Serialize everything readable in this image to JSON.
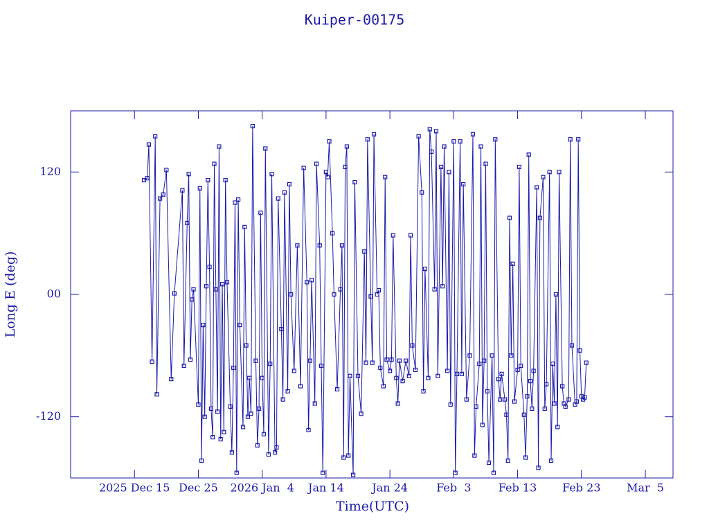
{
  "chart_data": {
    "type": "line",
    "title": "Kuiper-00175",
    "xlabel": "Time(UTC)",
    "ylabel": "Long E (deg)",
    "color": "#1a1aaa",
    "markers": true,
    "xlim": [
      "2025-12-05 00:00",
      "2026-03-09 08:00"
    ],
    "xticks": [
      {
        "value": "2025-12-15 00:00",
        "label": "2025 Dec 15"
      },
      {
        "value": "2025-12-25 00:00",
        "label": "Dec 25"
      },
      {
        "value": "2026-01-04 00:00",
        "label": "2026 Jan  4"
      },
      {
        "value": "2026-01-14 00:00",
        "label": "Jan 14"
      },
      {
        "value": "2026-01-24 00:00",
        "label": "Jan 24"
      },
      {
        "value": "2026-02-03 00:00",
        "label": "Feb  3"
      },
      {
        "value": "2026-02-13 00:00",
        "label": "Feb 13"
      },
      {
        "value": "2026-02-23 00:00",
        "label": "Feb 23"
      },
      {
        "value": "2026-03-05 00:00",
        "label": "Mar  5"
      }
    ],
    "ylim": [
      -180,
      180
    ],
    "yticks": [
      -120,
      {
        "value": 0,
        "label": "00"
      },
      120
    ],
    "x": [
      "2025-12-16 12:00",
      "2025-12-17 00:00",
      "2025-12-17 06:00",
      "2025-12-17 18:00",
      "2025-12-18 06:00",
      "2025-12-18 12:00",
      "2025-12-19 00:00",
      "2025-12-19 12:00",
      "2025-12-20 00:00",
      "2025-12-20 18:00",
      "2025-12-21 06:00",
      "2025-12-22 12:00",
      "2025-12-22 18:00",
      "2025-12-23 06:00",
      "2025-12-23 12:00",
      "2025-12-23 18:00",
      "2025-12-24 00:00",
      "2025-12-24 06:00",
      "2025-12-25 00:00",
      "2025-12-25 06:00",
      "2025-12-25 12:00",
      "2025-12-25 18:00",
      "2025-12-26 00:00",
      "2025-12-26 06:00",
      "2025-12-26 12:00",
      "2025-12-26 18:00",
      "2025-12-27 00:00",
      "2025-12-27 06:00",
      "2025-12-27 12:00",
      "2025-12-27 18:00",
      "2025-12-28 00:00",
      "2025-12-28 06:00",
      "2025-12-28 12:00",
      "2025-12-28 18:00",
      "2025-12-29 00:00",
      "2025-12-29 06:00",
      "2025-12-29 12:00",
      "2025-12-30 00:00",
      "2025-12-30 06:00",
      "2025-12-30 12:00",
      "2025-12-30 18:00",
      "2025-12-31 00:00",
      "2025-12-31 06:00",
      "2025-12-31 12:00",
      "2026-01-01 00:00",
      "2026-01-01 06:00",
      "2026-01-01 12:00",
      "2026-01-01 18:00",
      "2026-01-02 00:00",
      "2026-01-02 06:00",
      "2026-01-02 12:00",
      "2026-01-03 00:00",
      "2026-01-03 06:00",
      "2026-01-03 12:00",
      "2026-01-03 18:00",
      "2026-01-04 00:00",
      "2026-01-04 06:00",
      "2026-01-04 12:00",
      "2026-01-05 00:00",
      "2026-01-05 06:00",
      "2026-01-05 12:00",
      "2026-01-06 00:00",
      "2026-01-06 06:00",
      "2026-01-06 12:00",
      "2026-01-07 00:00",
      "2026-01-07 06:00",
      "2026-01-07 12:00",
      "2026-01-08 00:00",
      "2026-01-08 06:00",
      "2026-01-08 12:00",
      "2026-01-09 00:00",
      "2026-01-09 12:00",
      "2026-01-10 00:00",
      "2026-01-10 12:00",
      "2026-01-11 00:00",
      "2026-01-11 06:00",
      "2026-01-11 12:00",
      "2026-01-11 18:00",
      "2026-01-12 06:00",
      "2026-01-12 12:00",
      "2026-01-13 00:00",
      "2026-01-13 06:00",
      "2026-01-13 12:00",
      "2026-01-14 00:00",
      "2026-01-14 06:00",
      "2026-01-14 12:00",
      "2026-01-15 00:00",
      "2026-01-15 06:00",
      "2026-01-15 18:00",
      "2026-01-16 06:00",
      "2026-01-16 12:00",
      "2026-01-16 18:00",
      "2026-01-17 00:00",
      "2026-01-17 06:00",
      "2026-01-17 12:00",
      "2026-01-17 18:00",
      "2026-01-18 06:00",
      "2026-01-18 12:00",
      "2026-01-19 00:00",
      "2026-01-19 12:00",
      "2026-01-20 00:00",
      "2026-01-20 06:00",
      "2026-01-20 12:00",
      "2026-01-21 00:00",
      "2026-01-21 06:00",
      "2026-01-21 12:00",
      "2026-01-22 00:00",
      "2026-01-22 06:00",
      "2026-01-22 12:00",
      "2026-01-23 00:00",
      "2026-01-23 06:00",
      "2026-01-23 12:00",
      "2026-01-24 00:00",
      "2026-01-24 06:00",
      "2026-01-24 12:00",
      "2026-01-25 00:00",
      "2026-01-25 06:00",
      "2026-01-25 12:00",
      "2026-01-26 00:00",
      "2026-01-26 12:00",
      "2026-01-27 00:00",
      "2026-01-27 06:00",
      "2026-01-27 12:00",
      "2026-01-28 00:00",
      "2026-01-28 12:00",
      "2026-01-29 00:00",
      "2026-01-29 06:00",
      "2026-01-29 12:00",
      "2026-01-30 00:00",
      "2026-01-30 06:00",
      "2026-01-30 12:00",
      "2026-01-31 00:00",
      "2026-01-31 06:00",
      "2026-01-31 12:00",
      "2026-02-01 00:00",
      "2026-02-01 06:00",
      "2026-02-01 12:00",
      "2026-02-02 00:00",
      "2026-02-02 06:00",
      "2026-02-02 12:00",
      "2026-02-03 00:00",
      "2026-02-03 06:00",
      "2026-02-03 12:00",
      "2026-02-04 00:00",
      "2026-02-04 06:00",
      "2026-02-04 12:00",
      "2026-02-05 00:00",
      "2026-02-05 12:00",
      "2026-02-06 00:00",
      "2026-02-06 06:00",
      "2026-02-06 12:00",
      "2026-02-07 00:00",
      "2026-02-07 06:00",
      "2026-02-07 12:00",
      "2026-02-07 18:00",
      "2026-02-08 00:00",
      "2026-02-08 06:00",
      "2026-02-08 12:00",
      "2026-02-09 00:00",
      "2026-02-09 06:00",
      "2026-02-09 12:00",
      "2026-02-10 00:00",
      "2026-02-10 06:00",
      "2026-02-10 12:00",
      "2026-02-11 00:00",
      "2026-02-11 06:00",
      "2026-02-11 12:00",
      "2026-02-11 18:00",
      "2026-02-12 00:00",
      "2026-02-12 06:00",
      "2026-02-12 12:00",
      "2026-02-13 00:00",
      "2026-02-13 06:00",
      "2026-02-13 12:00",
      "2026-02-14 00:00",
      "2026-02-14 06:00",
      "2026-02-14 12:00",
      "2026-02-14 18:00",
      "2026-02-15 00:00",
      "2026-02-15 06:00",
      "2026-02-15 12:00",
      "2026-02-16 00:00",
      "2026-02-16 06:00",
      "2026-02-16 12:00",
      "2026-02-17 00:00",
      "2026-02-17 06:00",
      "2026-02-17 12:00",
      "2026-02-18 00:00",
      "2026-02-18 06:00",
      "2026-02-18 12:00",
      "2026-02-18 18:00",
      "2026-02-19 00:00",
      "2026-02-19 06:00",
      "2026-02-19 12:00",
      "2026-02-20 00:00",
      "2026-02-20 06:00",
      "2026-02-20 12:00",
      "2026-02-21 00:00",
      "2026-02-21 06:00",
      "2026-02-21 12:00",
      "2026-02-22 00:00",
      "2026-02-22 06:00",
      "2026-02-22 12:00",
      "2026-02-22 18:00",
      "2026-02-23 00:00",
      "2026-02-23 06:00",
      "2026-02-23 12:00",
      "2026-02-23 18:00"
    ],
    "values": [
      112,
      114,
      147,
      -66,
      155,
      -98,
      94,
      98,
      122,
      -83,
      1,
      102,
      -70,
      70,
      118,
      -64,
      -5,
      5,
      -108,
      104,
      -163,
      -30,
      -120,
      8,
      112,
      27,
      -112,
      -140,
      128,
      5,
      -115,
      145,
      -142,
      10,
      -135,
      112,
      12,
      -110,
      -155,
      -72,
      90,
      -175,
      93,
      -30,
      -130,
      66,
      -50,
      -120,
      -82,
      -117,
      165,
      -65,
      -148,
      -112,
      80,
      -82,
      -137,
      143,
      -157,
      -68,
      118,
      -155,
      -150,
      94,
      -34,
      -103,
      100,
      -95,
      108,
      0,
      -75,
      48,
      -90,
      124,
      12,
      -133,
      -65,
      14,
      -107,
      128,
      48,
      -70,
      -175,
      120,
      115,
      150,
      60,
      0,
      -93,
      5,
      48,
      -160,
      125,
      145,
      -158,
      -80,
      -177,
      110,
      -80,
      -117,
      42,
      -67,
      152,
      -2,
      -67,
      157,
      0,
      4,
      -72,
      -90,
      115,
      -64,
      -75,
      -64,
      58,
      -82,
      -107,
      -65,
      -85,
      -65,
      -80,
      58,
      -50,
      -74,
      155,
      100,
      -95,
      25,
      -82,
      162,
      140,
      5,
      160,
      -80,
      125,
      8,
      145,
      -75,
      120,
      -108,
      150,
      -175,
      -78,
      150,
      -78,
      108,
      -103,
      -60,
      157,
      -158,
      -110,
      -68,
      145,
      -128,
      -65,
      128,
      -95,
      -165,
      -60,
      -175,
      152,
      -83,
      -103,
      -78,
      -103,
      -118,
      -163,
      75,
      -60,
      30,
      -105,
      -74,
      125,
      -70,
      -118,
      -160,
      -100,
      137,
      -85,
      -112,
      -75,
      105,
      -170,
      75,
      115,
      -112,
      -88,
      120,
      -163,
      -68,
      -107,
      0,
      -130,
      120,
      -90,
      -107,
      -110,
      -103,
      152,
      -50,
      -108,
      -105,
      152,
      -55,
      -100,
      -103,
      -101,
      -67
    ]
  }
}
